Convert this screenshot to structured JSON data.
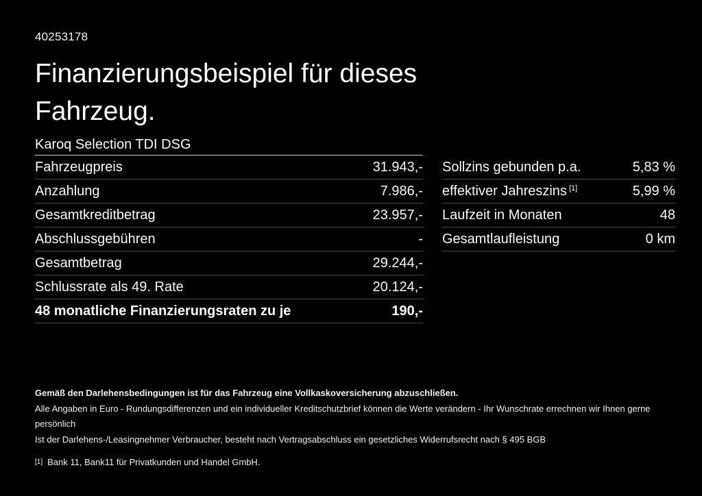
{
  "page": {
    "document_id": "40253178",
    "title": "Finanzierungsbeispiel für dieses Fahrzeug.",
    "vehicle_model": "Karoq Selection TDI DSG"
  },
  "colors": {
    "background": "#000000",
    "text": "#ffffff",
    "header_rule": "#cfcfcf",
    "row_rule": "#454545"
  },
  "tables": {
    "left": {
      "rows": [
        {
          "label": "Fahrzeugpreis",
          "value": "31.943,-"
        },
        {
          "label": "Anzahlung",
          "value": "7.986,-"
        },
        {
          "label": "Gesamtkreditbetrag",
          "value": "23.957,-"
        },
        {
          "label": "Abschlussgebühren",
          "value": "-"
        },
        {
          "label": "Gesamtbetrag",
          "value": "29.244,-"
        },
        {
          "label": "Schlussrate als 49. Rate",
          "value": "20.124,-"
        },
        {
          "label": "48 monatliche Finanzierungsraten zu je",
          "value": "190,-"
        }
      ]
    },
    "right": {
      "rows": [
        {
          "label": "Sollzins gebunden p.a.",
          "value": "5,83 %"
        },
        {
          "label": "effektiver Jahreszins",
          "footnote_marker": "[1]",
          "value": "5,99 %"
        },
        {
          "label": "Laufzeit in Monaten",
          "value": "48"
        },
        {
          "label": "Gesamtlaufleistung",
          "value": "0 km"
        }
      ]
    }
  },
  "footer": {
    "insurance_note": "Gemäß den Darlehensbedingungen ist für das Fahrzeug eine Vollkaskoversicherung abzuschließen.",
    "disclaimer_line1": "Alle Angaben in Euro - Rundungsdifferenzen und ein individueller Kreditschutzbrief können die Werte verändern - Ihr Wunschrate errechnen wir Ihnen gerne persönlich",
    "disclaimer_line2": "Ist der Darlehens-/Leasingnehmer Verbraucher, besteht nach Vertragsabschluss ein gesetzliches Widerrufsrecht nach § 495 BGB",
    "footnote_marker": "[1]",
    "footnote_text": "Bank 11, Bank11 für Privatkunden und Handel GmbH."
  }
}
